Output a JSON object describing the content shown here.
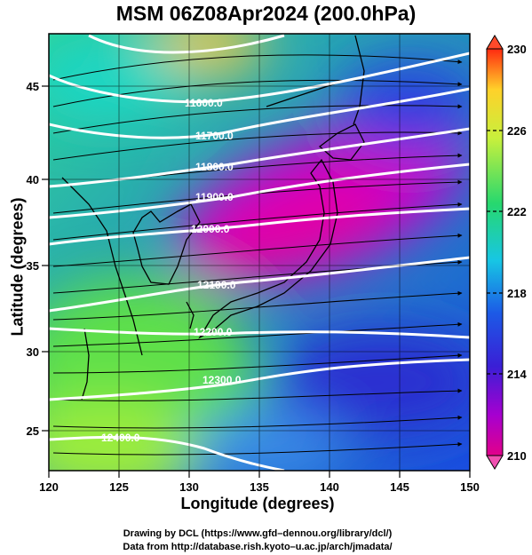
{
  "title": "MSM 06Z08Apr2024 (200.0hPa)",
  "xlabel": "Longitude (degrees)",
  "ylabel": "Latitude  (degrees)",
  "credits": [
    "Drawing by DCL (https://www.gfd–dennou.org/library/dcl/)",
    "Data from http://database.rish.kyoto–u.ac.jp/arch/jmadata/"
  ],
  "x_ticks": [
    "120",
    "125",
    "130",
    "135",
    "140",
    "145",
    "150"
  ],
  "y_ticks": [
    "25",
    "30",
    "35",
    "40",
    "45"
  ],
  "colorbar": {
    "labels": [
      "230",
      "226",
      "222",
      "218",
      "214",
      "210"
    ],
    "min": 210,
    "max": 230,
    "colors": [
      "#e2008a",
      "#a600d0",
      "#3a1fd6",
      "#1c5ae6",
      "#17c6e4",
      "#27d86e",
      "#c8f03c",
      "#ffd12a",
      "#ff2a10"
    ]
  },
  "contours": [
    {
      "label": "11600.0"
    },
    {
      "label": "11700.0"
    },
    {
      "label": "11800.0"
    },
    {
      "label": "11900.0"
    },
    {
      "label": "12000.0"
    },
    {
      "label": "12100.0"
    },
    {
      "label": "12200.0"
    },
    {
      "label": "12300.0"
    },
    {
      "label": "12400.0"
    }
  ],
  "map": {
    "lon_range": [
      120,
      150
    ],
    "lat_range": [
      22.4,
      48
    ],
    "field": "temperature (K)",
    "overlays": [
      "geopotential height contours",
      "wind streamlines",
      "coastlines"
    ]
  }
}
